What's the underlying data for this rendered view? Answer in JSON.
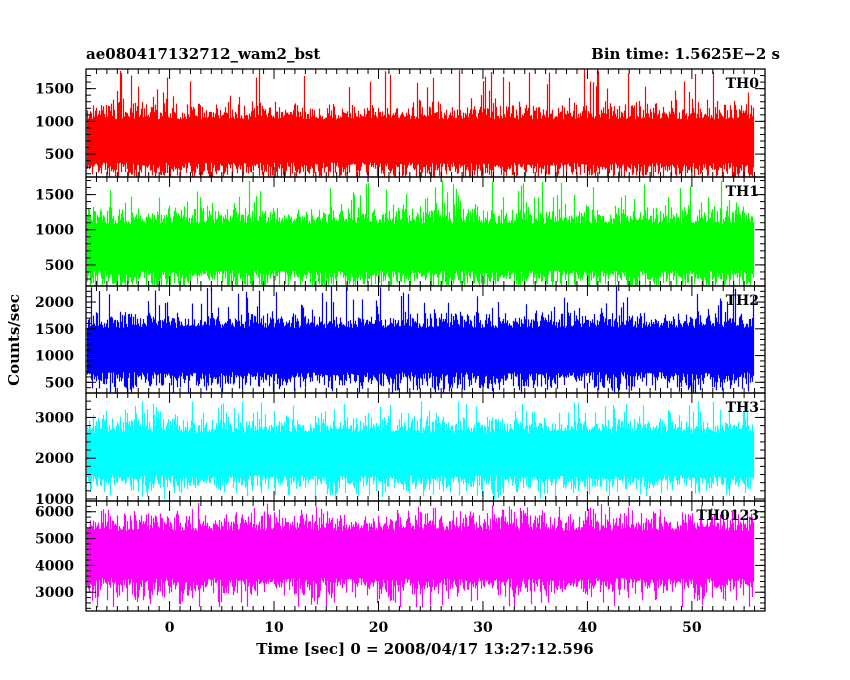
{
  "chart_data": {
    "type": "line",
    "title_left": "ae080417132712_wam2_bst",
    "title_right": "Bin time: 1.5625E−2 s",
    "xlabel": "Time [sec] 0 = 2008/04/17 13:27:12.596",
    "ylabel": "Counts/sec",
    "xlim": [
      -8,
      57
    ],
    "x_ticks": [
      0,
      10,
      20,
      30,
      40,
      50
    ],
    "x_data_range": [
      -7.9,
      55.9
    ],
    "bin_time_sec": 0.015625,
    "panels": [
      {
        "name": "TH0",
        "color": "#ff0000",
        "ylim": [
          150,
          1800
        ],
        "y_ticks": [
          500,
          1000,
          1500
        ],
        "mean": 700,
        "typical_min": 200,
        "typical_max": 1400,
        "peak_max": 1800
      },
      {
        "name": "TH1",
        "color": "#00ff00",
        "ylim": [
          200,
          1750
        ],
        "y_ticks": [
          500,
          1000,
          1500
        ],
        "mean": 750,
        "typical_min": 250,
        "typical_max": 1450,
        "peak_max": 1700
      },
      {
        "name": "TH2",
        "color": "#0000ff",
        "ylim": [
          300,
          2300
        ],
        "y_ticks": [
          500,
          1000,
          1500,
          2000
        ],
        "mean": 1100,
        "typical_min": 450,
        "typical_max": 1950,
        "peak_max": 2300
      },
      {
        "name": "TH3",
        "color": "#00ffff",
        "ylim": [
          950,
          3600
        ],
        "y_ticks": [
          1000,
          2000,
          3000
        ],
        "mean": 2100,
        "typical_min": 1200,
        "typical_max": 3100,
        "peak_max": 3400
      },
      {
        "name": "TH0123",
        "color": "#ff00ff",
        "ylim": [
          2300,
          6400
        ],
        "y_ticks": [
          3000,
          4000,
          5000,
          6000
        ],
        "mean": 4400,
        "typical_min": 2700,
        "typical_max": 5900,
        "peak_max": 6200
      }
    ]
  }
}
